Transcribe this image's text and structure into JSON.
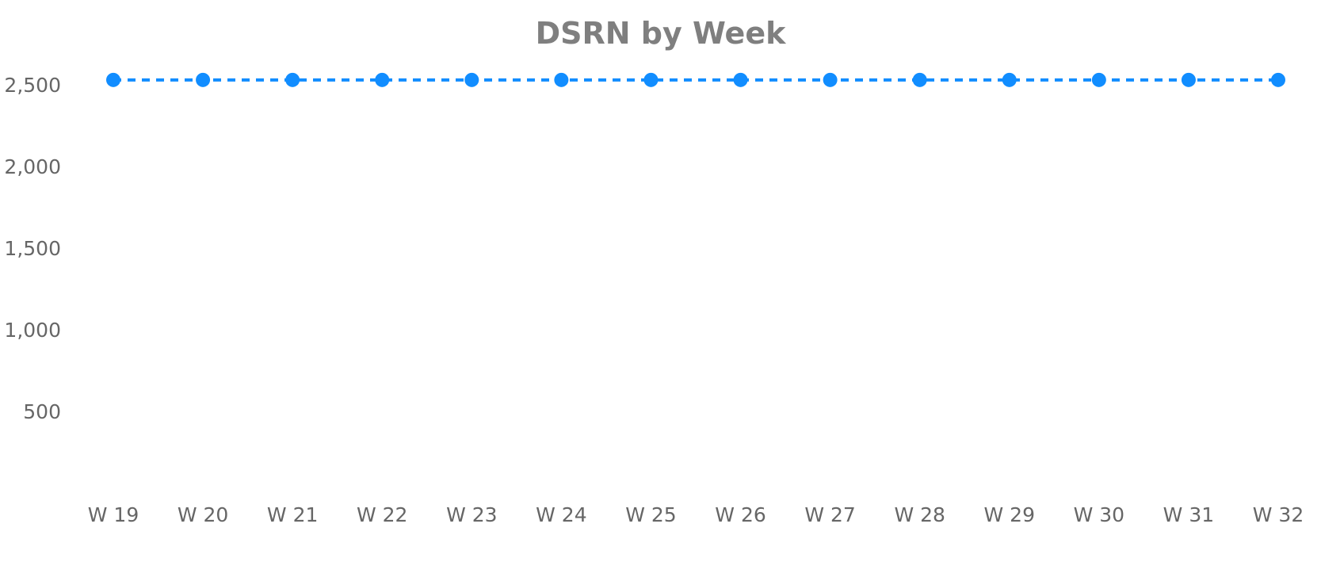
{
  "chart_data": {
    "type": "line",
    "title": "DSRN by Week",
    "xlabel": "",
    "ylabel": "",
    "categories": [
      "W 19",
      "W 20",
      "W 21",
      "W 22",
      "W 23",
      "W 24",
      "W 25",
      "W 26",
      "W 27",
      "W 28",
      "W 29",
      "W 30",
      "W 31",
      "W 32"
    ],
    "series": [
      {
        "values": [
          2530,
          2530,
          2530,
          2530,
          2530,
          2530,
          2530,
          2530,
          2530,
          2530,
          2530,
          2530,
          2530,
          2530
        ],
        "color": "#118dff",
        "line_style": "dashed",
        "markers": true
      }
    ],
    "ylim": [
      0,
      2700
    ],
    "yticks": [
      500,
      1000,
      1500,
      2000,
      2500
    ],
    "ytick_labels": [
      "500",
      "1,000",
      "1,500",
      "2,000",
      "2,500"
    ],
    "grid": false,
    "legend": "none"
  }
}
